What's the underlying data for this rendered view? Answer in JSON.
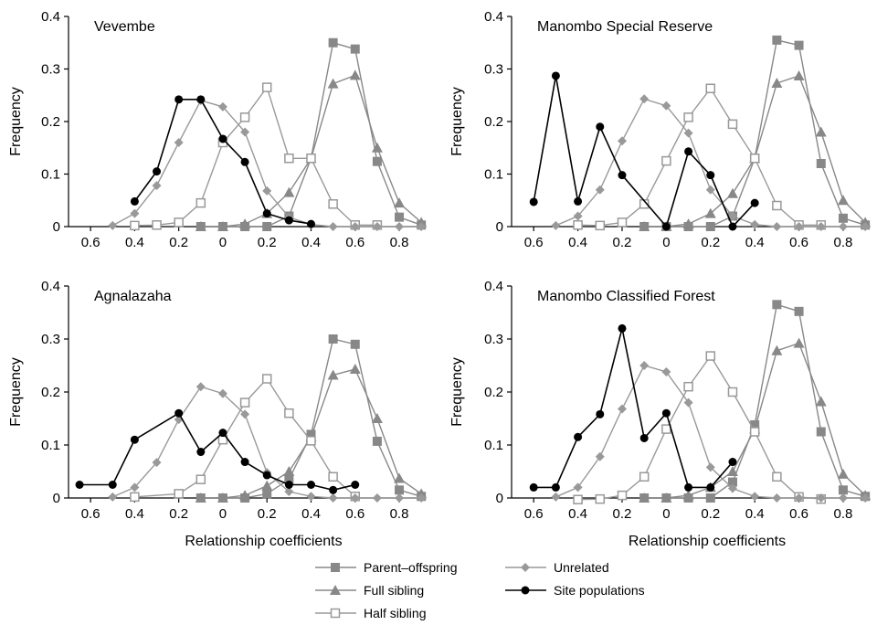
{
  "chart_data": {
    "type": "line",
    "layout": "2x2 panels",
    "ylim": [
      0,
      0.4
    ],
    "yticks": [
      "0",
      "0.1",
      "0.2",
      "0.3",
      "0.4"
    ],
    "xticks": [
      "0.6",
      "0.4",
      "0.2",
      "0",
      "0.2",
      "0.4",
      "0.6",
      "0.8"
    ],
    "xtick_values": [
      -0.6,
      -0.4,
      -0.2,
      0,
      0.2,
      0.4,
      0.6,
      0.8
    ],
    "xlim": [
      -0.7,
      0.92
    ],
    "ylabel": "Frequency",
    "xlabel": "Relationship coefficients",
    "series_styles": {
      "po": {
        "name": "Parent–offspring",
        "color": "#888888",
        "marker": "square"
      },
      "fs": {
        "name": "Full sibling",
        "color": "#888888",
        "marker": "triangle"
      },
      "hs": {
        "name": "Half sibling",
        "color": "#999999",
        "marker": "open-square"
      },
      "ur": {
        "name": "Unrelated",
        "color": "#999999",
        "marker": "diamond"
      },
      "site": {
        "name": "Site populations",
        "color": "#000000",
        "marker": "circle"
      }
    },
    "legend": {
      "left": [
        "Parent–offspring",
        "Full sibling",
        "Half sibling"
      ],
      "right": [
        "Unrelated",
        "Site populations"
      ]
    },
    "panels": [
      {
        "title": "Vevembe",
        "show_xlabel": false,
        "series": {
          "po": {
            "x": [
              -0.1,
              0,
              0.1,
              0.2,
              0.3,
              0.4,
              0.5,
              0.6,
              0.7,
              0.8,
              0.9
            ],
            "y": [
              0,
              0,
              0,
              0,
              0.02,
              0.13,
              0.35,
              0.338,
              0.124,
              0.018,
              0.003
            ]
          },
          "fs": {
            "x": [
              -0.1,
              0,
              0.1,
              0.2,
              0.3,
              0.4,
              0.5,
              0.6,
              0.7,
              0.8,
              0.9
            ],
            "y": [
              0,
              0,
              0.005,
              0.025,
              0.065,
              0.13,
              0.272,
              0.288,
              0.15,
              0.045,
              0.008
            ]
          },
          "hs": {
            "x": [
              -0.4,
              -0.3,
              -0.2,
              -0.1,
              0,
              0.1,
              0.2,
              0.3,
              0.4,
              0.5,
              0.6,
              0.7
            ],
            "y": [
              0.002,
              0.003,
              0.008,
              0.045,
              0.16,
              0.208,
              0.265,
              0.13,
              0.13,
              0.043,
              0.003,
              0.003
            ]
          },
          "ur": {
            "x": [
              -0.5,
              -0.4,
              -0.3,
              -0.2,
              -0.1,
              0,
              0.1,
              0.2,
              0.3,
              0.4,
              0.5,
              0.6,
              0.7,
              0.8,
              0.9
            ],
            "y": [
              0.002,
              0.025,
              0.078,
              0.16,
              0.24,
              0.228,
              0.18,
              0.068,
              0.018,
              0.004,
              0,
              0,
              0,
              0,
              0
            ]
          },
          "site": {
            "x": [
              -0.4,
              -0.3,
              -0.2,
              -0.1,
              0,
              0.1,
              0.2,
              0.3,
              0.4
            ],
            "y": [
              0.048,
              0.105,
              0.242,
              0.242,
              0.167,
              0.123,
              0.025,
              0.012,
              0.005
            ]
          }
        }
      },
      {
        "title": "Manombo Special Reserve",
        "show_xlabel": false,
        "series": {
          "po": {
            "x": [
              -0.1,
              0,
              0.1,
              0.2,
              0.3,
              0.4,
              0.5,
              0.6,
              0.7,
              0.8,
              0.9
            ],
            "y": [
              0,
              0,
              0,
              0,
              0.02,
              0.13,
              0.355,
              0.345,
              0.12,
              0.016,
              0.003
            ]
          },
          "fs": {
            "x": [
              -0.1,
              0,
              0.1,
              0.2,
              0.3,
              0.4,
              0.5,
              0.6,
              0.7,
              0.8,
              0.9
            ],
            "y": [
              0,
              0,
              0.005,
              0.025,
              0.063,
              0.13,
              0.273,
              0.287,
              0.18,
              0.05,
              0.008
            ]
          },
          "hs": {
            "x": [
              -0.4,
              -0.3,
              -0.2,
              -0.1,
              0,
              0.1,
              0.2,
              0.3,
              0.4,
              0.5,
              0.6,
              0.7
            ],
            "y": [
              0.003,
              0.002,
              0.008,
              0.043,
              0.125,
              0.208,
              0.263,
              0.195,
              0.13,
              0.04,
              0.003,
              0.003
            ]
          },
          "ur": {
            "x": [
              -0.5,
              -0.4,
              -0.3,
              -0.2,
              -0.1,
              0,
              0.1,
              0.2,
              0.3,
              0.4,
              0.5,
              0.6,
              0.7,
              0.8,
              0.9
            ],
            "y": [
              0.002,
              0.02,
              0.07,
              0.163,
              0.243,
              0.23,
              0.178,
              0.07,
              0.02,
              0.004,
              0,
              0,
              0,
              0,
              0
            ]
          },
          "site": {
            "x": [
              -0.6,
              -0.5,
              -0.4,
              -0.3,
              -0.2,
              0,
              0.1,
              0.2,
              0.3,
              0.4
            ],
            "y": [
              0.047,
              0.287,
              0.048,
              0.19,
              0.098,
              0,
              0.143,
              0.098,
              0,
              0.045
            ]
          }
        }
      },
      {
        "title": "Agnalazaha",
        "show_xlabel": true,
        "series": {
          "po": {
            "x": [
              -0.1,
              0,
              0.1,
              0.2,
              0.3,
              0.4,
              0.5,
              0.6,
              0.7,
              0.8,
              0.9
            ],
            "y": [
              0,
              0,
              0,
              0.008,
              0.035,
              0.12,
              0.3,
              0.29,
              0.107,
              0.015,
              0.003
            ]
          },
          "fs": {
            "x": [
              -0.1,
              0,
              0.1,
              0.2,
              0.3,
              0.4,
              0.5,
              0.6,
              0.7,
              0.8,
              0.9
            ],
            "y": [
              0,
              0,
              0.005,
              0.023,
              0.05,
              0.115,
              0.232,
              0.243,
              0.15,
              0.037,
              0.008
            ]
          },
          "hs": {
            "x": [
              -0.4,
              -0.2,
              -0.1,
              0,
              0.1,
              0.2,
              0.3,
              0.4,
              0.5,
              0.6
            ],
            "y": [
              0.002,
              0.008,
              0.035,
              0.11,
              0.18,
              0.225,
              0.16,
              0.108,
              0.04,
              0.003
            ]
          },
          "ur": {
            "x": [
              -0.5,
              -0.4,
              -0.3,
              -0.2,
              -0.1,
              0,
              0.1,
              0.2,
              0.3,
              0.4,
              0.5,
              0.6,
              0.7,
              0.8,
              0.9
            ],
            "y": [
              0.002,
              0.02,
              0.067,
              0.148,
              0.21,
              0.197,
              0.158,
              0.048,
              0.012,
              0.003,
              0,
              0,
              0,
              0,
              0
            ]
          },
          "site": {
            "x": [
              -0.65,
              -0.5,
              -0.4,
              -0.2,
              -0.1,
              0,
              0.1,
              0.2,
              0.3,
              0.4,
              0.5,
              0.6
            ],
            "y": [
              0.025,
              0.025,
              0.11,
              0.16,
              0.087,
              0.123,
              0.068,
              0.043,
              0.025,
              0.025,
              0.015,
              0.025
            ]
          }
        }
      },
      {
        "title": "Manombo Classified Forest",
        "show_xlabel": true,
        "series": {
          "po": {
            "x": [
              -0.1,
              0,
              0.1,
              0.2,
              0.3,
              0.4,
              0.5,
              0.6,
              0.7,
              0.8,
              0.9
            ],
            "y": [
              0,
              0,
              0,
              0,
              0.03,
              0.138,
              0.365,
              0.352,
              0.125,
              0.015,
              0.003
            ]
          },
          "fs": {
            "x": [
              -0.1,
              0,
              0.1,
              0.2,
              0.3,
              0.4,
              0.5,
              0.6,
              0.7,
              0.8,
              0.9
            ],
            "y": [
              0,
              0,
              0.005,
              0.02,
              0.05,
              0.13,
              0.278,
              0.292,
              0.182,
              0.045,
              0.005
            ]
          },
          "hs": {
            "x": [
              -0.4,
              -0.3,
              -0.2,
              -0.1,
              0,
              0.1,
              0.2,
              0.3,
              0.4,
              0.5,
              0.6,
              0.7
            ],
            "y": [
              -0.003,
              -0.002,
              0.005,
              0.04,
              0.13,
              0.21,
              0.268,
              0.2,
              0.125,
              0.04,
              0.002,
              -0.002
            ]
          },
          "ur": {
            "x": [
              -0.5,
              -0.4,
              -0.3,
              -0.2,
              -0.1,
              0,
              0.1,
              0.2,
              0.3,
              0.4,
              0.5,
              0.6,
              0.7,
              0.8,
              0.9
            ],
            "y": [
              0.002,
              0.02,
              0.078,
              0.168,
              0.25,
              0.238,
              0.18,
              0.058,
              0.018,
              0.003,
              0,
              0,
              0,
              0,
              0
            ]
          },
          "site": {
            "x": [
              -0.6,
              -0.5,
              -0.4,
              -0.3,
              -0.2,
              -0.1,
              0,
              0.1,
              0.2,
              0.3
            ],
            "y": [
              0.02,
              0.02,
              0.115,
              0.158,
              0.32,
              0.113,
              0.16,
              0.02,
              0.02,
              0.068
            ]
          }
        }
      }
    ]
  }
}
